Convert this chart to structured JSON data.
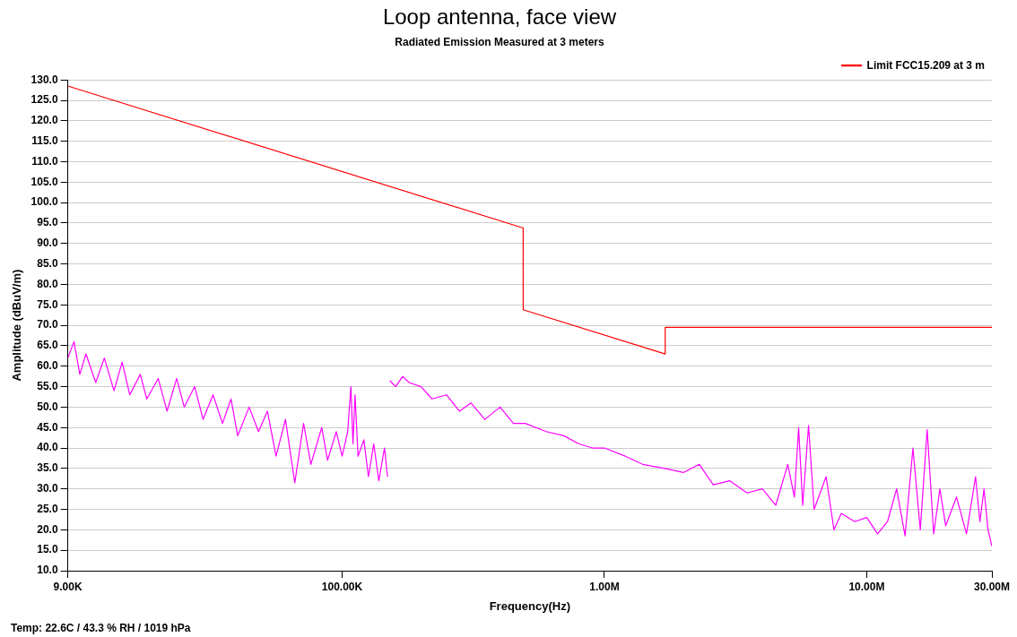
{
  "chart_data": {
    "type": "line",
    "title": "Loop antenna, face view",
    "subtitle": "Radiated Emission Measured at 3 meters",
    "xlabel": "Frequency(Hz)",
    "ylabel": "Amplitude (dBuV/m)",
    "annotations": [
      "Temp: 22.6C / 43.3 % RH / 1019 hPa"
    ],
    "log": "x",
    "xlim": [
      9000,
      30000000
    ],
    "xticks": [
      {
        "value": 9000,
        "label": "9.00K"
      },
      {
        "value": 100000,
        "label": "100.00K"
      },
      {
        "value": 1000000,
        "label": "1.00M"
      },
      {
        "value": 10000000,
        "label": "10.00M"
      },
      {
        "value": 30000000,
        "label": "30.00M"
      }
    ],
    "ylim": [
      10,
      130
    ],
    "yticks": [
      {
        "value": 10,
        "label": "10.0"
      },
      {
        "value": 15,
        "label": "15.0"
      },
      {
        "value": 20,
        "label": "20.0"
      },
      {
        "value": 25,
        "label": "25.0"
      },
      {
        "value": 30,
        "label": "30.0"
      },
      {
        "value": 35,
        "label": "35.0"
      },
      {
        "value": 40,
        "label": "40.0"
      },
      {
        "value": 45,
        "label": "45.0"
      },
      {
        "value": 50,
        "label": "50.0"
      },
      {
        "value": 55,
        "label": "55.0"
      },
      {
        "value": 60,
        "label": "60.0"
      },
      {
        "value": 65,
        "label": "65.0"
      },
      {
        "value": 70,
        "label": "70.0"
      },
      {
        "value": 75,
        "label": "75.0"
      },
      {
        "value": 80,
        "label": "80.0"
      },
      {
        "value": 85,
        "label": "85.0"
      },
      {
        "value": 90,
        "label": "90.0"
      },
      {
        "value": 95,
        "label": "95.0"
      },
      {
        "value": 100,
        "label": "100.0"
      },
      {
        "value": 105,
        "label": "105.0"
      },
      {
        "value": 110,
        "label": "110.0"
      },
      {
        "value": 115,
        "label": "115.0"
      },
      {
        "value": 120,
        "label": "120.0"
      },
      {
        "value": 125,
        "label": "125.0"
      },
      {
        "value": 130,
        "label": "130.0"
      }
    ],
    "grid": "y",
    "legend": "top right",
    "marker": "none",
    "line_style": "solid",
    "series": [
      {
        "name": "Limit FCC15.209 at 3 m",
        "color": "#ff0000",
        "x": [
          9000,
          490000,
          490000,
          1705000,
          1705000,
          30000000
        ],
        "values": [
          128.5,
          93.8,
          73.8,
          63.0,
          69.5,
          69.5
        ]
      },
      {
        "color": "#ff00ff",
        "x": [
          9000,
          9500,
          10000,
          10550,
          11500,
          12400,
          13500,
          14500,
          15500,
          17000,
          18000,
          19900,
          21500,
          23400,
          25000,
          27400,
          29500,
          32200,
          35000,
          37700,
          40000,
          44200,
          48000,
          51900,
          56000,
          60800,
          66000,
          71300,
          76000,
          83600,
          88000,
          95000,
          100000,
          105000,
          108000,
          110000,
          112000,
          115000,
          121000,
          126000,
          132000,
          138000,
          145000,
          149000,
          150000,
          152000,
          160000,
          170000,
          180000,
          200000,
          220000,
          250000,
          280000,
          310000,
          350000,
          400000,
          450000,
          500000,
          600000,
          700000,
          800000,
          900000,
          1000000,
          1200000,
          1400000,
          1700000,
          2000000,
          2300000,
          2600000,
          3000000,
          3500000,
          4000000,
          4500000,
          5000000,
          5300000,
          5500000,
          5700000,
          6000000,
          6300000,
          7000000,
          7500000,
          8000000,
          9000000,
          10000000,
          11000000,
          12000000,
          13000000,
          14000000,
          15000000,
          16000000,
          17000000,
          18000000,
          19000000,
          20000000,
          22000000,
          24000000,
          26000000,
          27000000,
          28000000,
          29000000,
          30000000
        ],
        "values": [
          62,
          66,
          58,
          63,
          56,
          62,
          54,
          61,
          53,
          58,
          52,
          57,
          49,
          57,
          50,
          55,
          47,
          53,
          46,
          52,
          43,
          50,
          44,
          49,
          38,
          47,
          31.5,
          46,
          36,
          45,
          37,
          44,
          38,
          44,
          55,
          41,
          53,
          38,
          42,
          33,
          41,
          32,
          40,
          33,
          null,
          56.5,
          55,
          57.5,
          56,
          55,
          52,
          53,
          49,
          51,
          47,
          50,
          46,
          46,
          44,
          43,
          41,
          40,
          40,
          38,
          36,
          35,
          34,
          36,
          31,
          32,
          29,
          30,
          26,
          36,
          28,
          45,
          26,
          45.5,
          25,
          33,
          20,
          24,
          22,
          23,
          19,
          22,
          30,
          18.5,
          40,
          20,
          44.5,
          19,
          30,
          21,
          28,
          19,
          33,
          22,
          30,
          20,
          16
        ]
      }
    ]
  }
}
